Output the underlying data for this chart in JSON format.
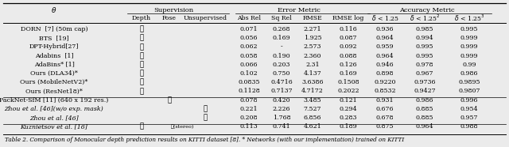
{
  "rows": [
    {
      "name": "DORN  [7] (50m cap)",
      "depth": true,
      "pose": false,
      "unsup": false,
      "stereo": false,
      "vals": [
        "0.071",
        "0.268",
        "2.271",
        "0.116",
        "0.936",
        "0.985",
        "0.995"
      ],
      "italic": false,
      "sep_above": false
    },
    {
      "name": "BTS  [19]",
      "depth": true,
      "pose": false,
      "unsup": false,
      "stereo": false,
      "vals": [
        "0.056",
        "0.169",
        "1.925",
        "0.087",
        "0.964",
        "0.994",
        "0.999"
      ],
      "italic": false,
      "sep_above": false
    },
    {
      "name": "DPT-Hybrid[27]",
      "depth": true,
      "pose": false,
      "unsup": false,
      "stereo": false,
      "vals": [
        "0.062",
        "-",
        "2.573",
        "0.092",
        "0.959",
        "0.995",
        "0.999"
      ],
      "italic": false,
      "sep_above": false
    },
    {
      "name": "Adabins  [1]",
      "depth": true,
      "pose": false,
      "unsup": false,
      "stereo": false,
      "vals": [
        "0.058",
        "0.190",
        "2.360",
        "0.088",
        "0.964",
        "0.995",
        "0.999"
      ],
      "italic": false,
      "sep_above": false
    },
    {
      "name": "AdaBins* [1]",
      "depth": true,
      "pose": false,
      "unsup": false,
      "stereo": false,
      "vals": [
        "0.066",
        "0.203",
        "2.31",
        "0.126",
        "0.946",
        "0.978",
        "0.99"
      ],
      "italic": false,
      "sep_above": false
    },
    {
      "name": "Ours (DLA34)*",
      "depth": true,
      "pose": false,
      "unsup": false,
      "stereo": false,
      "vals": [
        "0.102",
        "0.750",
        "4.137",
        "0.169",
        "0.898",
        "0.967",
        "0.986"
      ],
      "italic": false,
      "sep_above": false
    },
    {
      "name": "Ours (MobileNetV2)*",
      "depth": true,
      "pose": false,
      "unsup": false,
      "stereo": false,
      "vals": [
        "0.0835",
        "0.4716",
        "3.6386",
        "0.1508",
        "0.9220",
        "0.9736",
        "0.9895"
      ],
      "italic": false,
      "sep_above": false
    },
    {
      "name": "Ours (ResNet18)*",
      "depth": true,
      "pose": false,
      "unsup": false,
      "stereo": false,
      "vals": [
        "0.1128",
        "0.7137",
        "4.7172",
        "0.2022",
        "0.8532",
        "0.9427",
        "0.9807"
      ],
      "italic": false,
      "sep_above": false
    },
    {
      "name": "PackNet-SfM [11] (640 x 192 res.)",
      "depth": false,
      "pose": true,
      "unsup": false,
      "stereo": false,
      "vals": [
        "0.078",
        "0.420",
        "3.485",
        "0.121",
        "0.931",
        "0.986",
        "0.996"
      ],
      "italic": false,
      "sep_above": true
    },
    {
      "name": "Zhou et al. [46](w/o exp. mask)",
      "depth": false,
      "pose": false,
      "unsup": true,
      "stereo": false,
      "vals": [
        "0.221",
        "2.226",
        "7.527",
        "0.294",
        "0.676",
        "0.885",
        "0.954"
      ],
      "italic": true,
      "sep_above": false
    },
    {
      "name": "Zhou et al. [46]",
      "depth": false,
      "pose": false,
      "unsup": true,
      "stereo": false,
      "vals": [
        "0.208",
        "1.768",
        "6.856",
        "0.283",
        "0.678",
        "0.885",
        "0.957"
      ],
      "italic": true,
      "sep_above": false
    },
    {
      "name": "Kuznietsov et al. [16]",
      "depth": true,
      "pose": false,
      "unsup": false,
      "stereo": true,
      "vals": [
        "0.113",
        "0.741",
        "4.621",
        "0.189",
        "0.875",
        "0.964",
        "0.988"
      ],
      "italic": true,
      "sep_above": true
    }
  ],
  "caption": "Table 2. Comparison of Monocular depth prediction results on KITTI dataset [8]. * Networks (with our implementation) trained on KITTI",
  "bg_color": "#ebebeb",
  "fs": 5.8,
  "cap_fs": 5.2,
  "hdr_fs": 6.0
}
